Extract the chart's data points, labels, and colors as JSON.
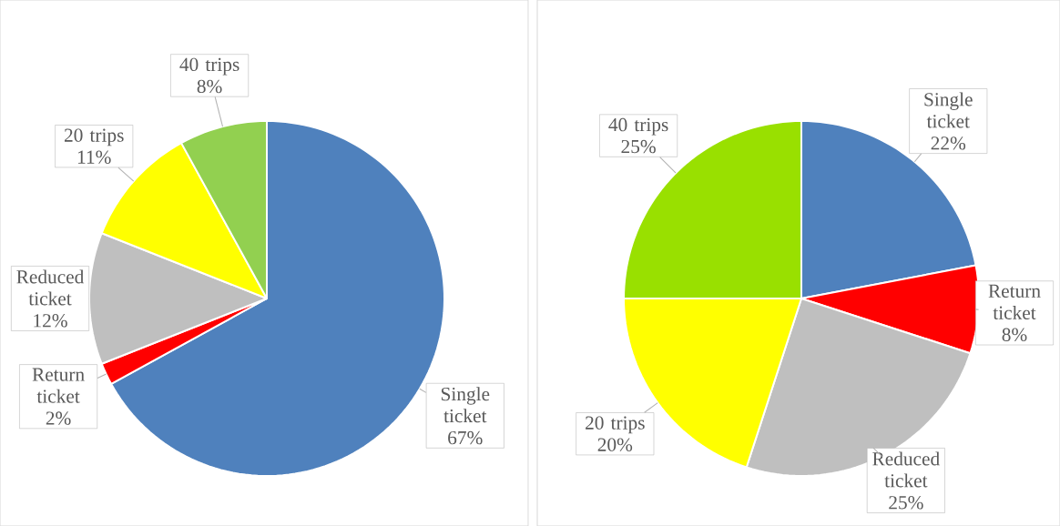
{
  "chart_data": [
    {
      "type": "pie",
      "categories": [
        "Single ticket",
        "Return ticket",
        "Reduced ticket",
        "20 trips",
        "40 trips"
      ],
      "values": [
        67,
        2,
        12,
        11,
        8
      ],
      "value_labels": [
        "67%",
        "2%",
        "12%",
        "11%",
        "8%"
      ],
      "colors": [
        "#4f81bd",
        "#ff0000",
        "#bfbfbf",
        "#ffff00",
        "#92d050"
      ],
      "data_labels": true
    },
    {
      "type": "pie",
      "categories": [
        "Single ticket",
        "Return ticket",
        "Reduced ticket",
        "20 trips",
        "40 trips"
      ],
      "values": [
        22,
        8,
        25,
        20,
        25
      ],
      "value_labels": [
        "22%",
        "8%",
        "25%",
        "20%",
        "25%"
      ],
      "colors": [
        "#4f81bd",
        "#ff0000",
        "#bfbfbf",
        "#ffff00",
        "#99e000"
      ],
      "data_labels": true
    }
  ]
}
